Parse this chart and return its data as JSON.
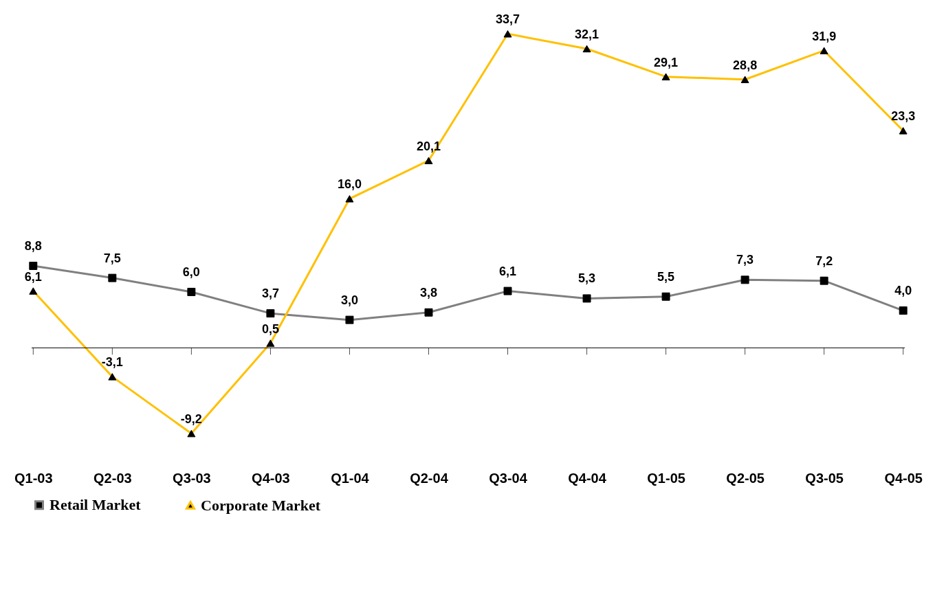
{
  "chart_data": {
    "type": "line",
    "categories": [
      "Q1-03",
      "Q2-03",
      "Q3-03",
      "Q4-03",
      "Q1-04",
      "Q2-04",
      "Q3-04",
      "Q4-04",
      "Q1-05",
      "Q2-05",
      "Q3-05",
      "Q4-05"
    ],
    "series": [
      {
        "name": "Retail Market",
        "color": "#808080",
        "marker": "square",
        "values": [
          8.8,
          7.5,
          6.0,
          3.7,
          3.0,
          3.8,
          6.1,
          5.3,
          5.5,
          7.3,
          7.2,
          4.0
        ],
        "value_labels": [
          "8,8",
          "7,5",
          "6,0",
          "3,7",
          "3,0",
          "3,8",
          "6,1",
          "5,3",
          "5,5",
          "7,3",
          "7,2",
          "4,0"
        ]
      },
      {
        "name": "Corporate Market",
        "color": "#ffc000",
        "marker": "triangle",
        "values": [
          6.1,
          -3.1,
          -9.2,
          0.5,
          16.0,
          20.1,
          33.7,
          32.1,
          29.1,
          28.8,
          31.9,
          23.3
        ],
        "value_labels": [
          "6,1",
          "-3,1",
          "-9,2",
          "0,5",
          "16,0",
          "20,1",
          "33,7",
          "32,1",
          "29,1",
          "28,8",
          "31,9",
          "23,3"
        ]
      }
    ],
    "legend": "bottom",
    "grid": false,
    "line_style": "solid"
  }
}
